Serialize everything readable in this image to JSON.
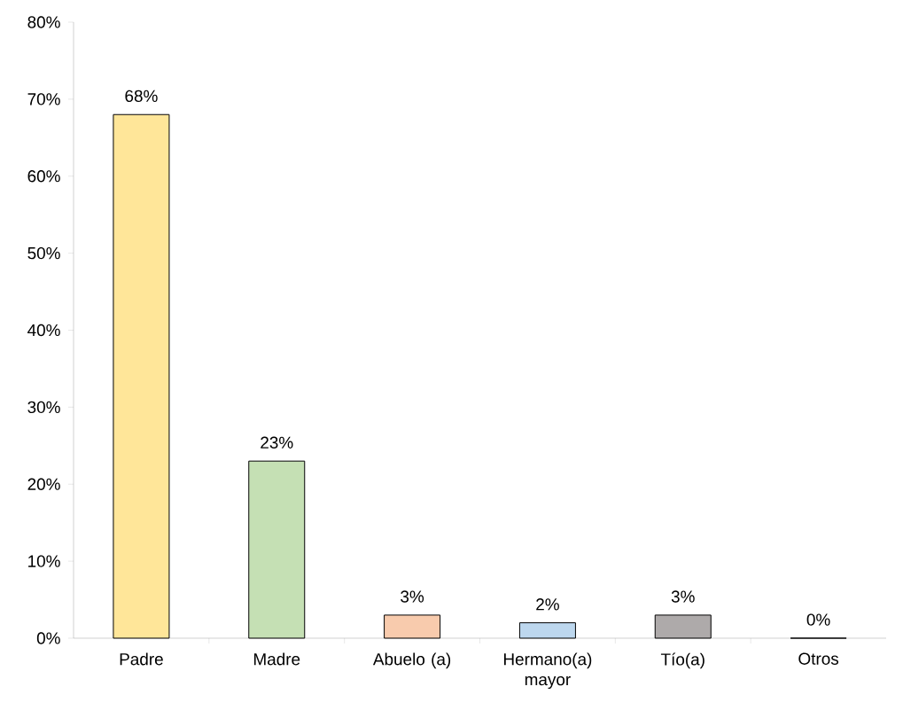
{
  "chart_data": {
    "type": "bar",
    "categories": [
      "Padre",
      "Madre",
      "Abuelo (a)",
      "Hermano(a) mayor",
      "Tío(a)",
      "Otros"
    ],
    "values": [
      68,
      23,
      3,
      2,
      3,
      0
    ],
    "value_labels": [
      "68%",
      "23%",
      "3%",
      "2%",
      "3%",
      "0%"
    ],
    "colors": [
      "#ffe699",
      "#c5e0b4",
      "#f8cbad",
      "#bdd7ee",
      "#aeaaaa",
      "#d9d9d9"
    ],
    "ylim": [
      0,
      80
    ],
    "yticks": [
      {
        "value": 0,
        "label": "0%"
      },
      {
        "value": 10,
        "label": "10%"
      },
      {
        "value": 20,
        "label": "20%"
      },
      {
        "value": 30,
        "label": "30%"
      },
      {
        "value": 40,
        "label": "40%"
      },
      {
        "value": 50,
        "label": "50%"
      },
      {
        "value": 60,
        "label": "60%"
      },
      {
        "value": 70,
        "label": "70%"
      },
      {
        "value": 80,
        "label": "80%"
      }
    ],
    "grid": false
  }
}
